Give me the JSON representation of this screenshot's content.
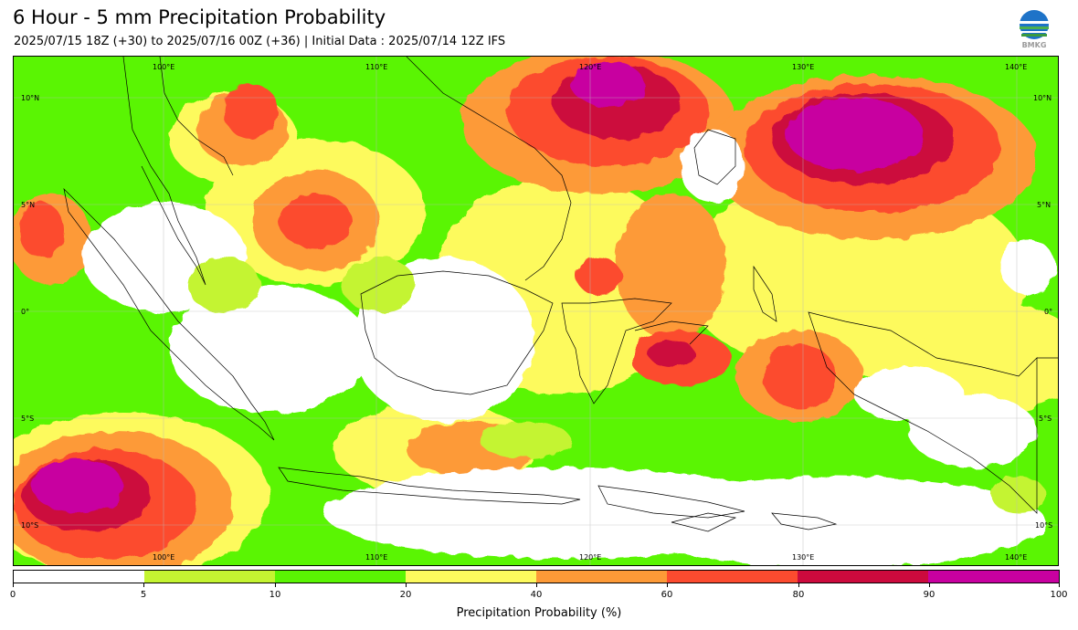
{
  "header": {
    "title": "6 Hour - 5 mm Precipitation Probability",
    "subtitle": "2025/07/15 18Z (+30) to 2025/07/16 00Z (+36) | Initial Data : 2025/07/14 12Z IFS",
    "logo_text": "BMKG",
    "logo_icon": "bmkg-logo-icon"
  },
  "map": {
    "lon_labels_top": [
      "100°E",
      "110°E",
      "120°E",
      "130°E",
      "140°E"
    ],
    "lon_labels_bottom": [
      "100°E",
      "110°E",
      "120°E",
      "130°E",
      "140°E"
    ],
    "lat_labels_left": [
      "10°N",
      "5°N",
      "0°",
      "5°S",
      "10°S"
    ],
    "lat_labels_right": [
      "10°N",
      "5°N",
      "0°",
      "5°S",
      "10°S"
    ]
  },
  "colorbar": {
    "title": "Precipitation Probability (%)",
    "ticks": [
      "0",
      "5",
      "10",
      "20",
      "40",
      "60",
      "80",
      "90",
      "100"
    ],
    "colors": [
      "#ffffff",
      "#c4f431",
      "#5af503",
      "#fdfa5d",
      "#fd9a37",
      "#fc4b2f",
      "#cc0a3d",
      "#c800a0"
    ]
  }
}
